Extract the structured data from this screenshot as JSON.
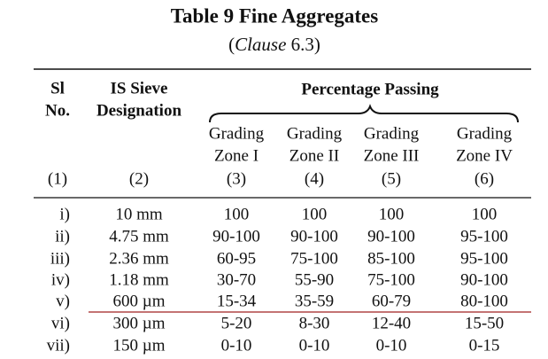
{
  "header": {
    "title": "Table 9 Fine Aggregates",
    "subtitle": [
      "(",
      "Clause",
      " 6.3)"
    ]
  },
  "table": {
    "columns": [
      {
        "lines": [
          "Sl",
          "No."
        ],
        "number": "(1)"
      },
      {
        "lines": [
          "IS Sieve",
          "Designation"
        ],
        "number": "(2)"
      },
      {
        "lines": [
          "Grading",
          "Zone I"
        ],
        "number": "(3)"
      },
      {
        "lines": [
          "Grading",
          "Zone II"
        ],
        "number": "(4)"
      },
      {
        "lines": [
          "Grading",
          "Zone III"
        ],
        "number": "(5)"
      },
      {
        "lines": [
          "Grading",
          "Zone IV"
        ],
        "number": "(6)"
      }
    ],
    "group_header": "Percentage Passing",
    "rows": [
      [
        "i)",
        "10 mm",
        "100",
        "100",
        "100",
        "100"
      ],
      [
        "ii)",
        "4.75 mm",
        "90-100",
        "90-100",
        "90-100",
        "95-100"
      ],
      [
        "iii)",
        "2.36 mm",
        "60-95",
        "75-100",
        "85-100",
        "95-100"
      ],
      [
        "iv)",
        "1.18 mm",
        "30-70",
        "55-90",
        "75-100",
        "90-100"
      ],
      [
        "v)",
        "600 µm",
        "15-34",
        "35-59",
        "60-79",
        "80-100"
      ],
      [
        "vi)",
        "300 µm",
        "5-20",
        "8-30",
        "12-40",
        "15-50"
      ],
      [
        "vii)",
        "150 µm",
        "0-10",
        "0-10",
        "0-10",
        "0-15"
      ]
    ]
  }
}
